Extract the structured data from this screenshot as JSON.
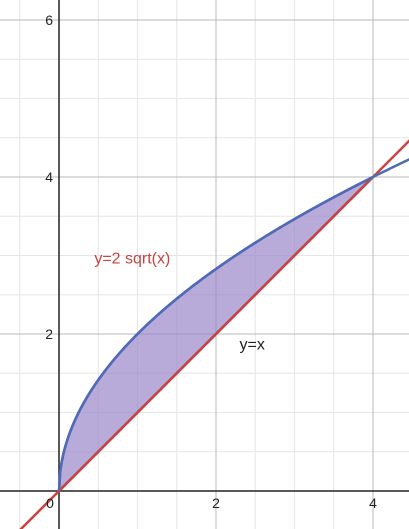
{
  "chart_data": {
    "type": "line",
    "title": "",
    "xlabel": "",
    "ylabel": "",
    "xlim": [
      -0.75,
      4.5
    ],
    "ylim": [
      -0.5,
      6.2
    ],
    "grid": true,
    "minor_grid_step": 0.5,
    "major_grid_step": 2,
    "x_ticks": [
      {
        "value": 0,
        "label": "0"
      },
      {
        "value": 2,
        "label": "2"
      },
      {
        "value": 4,
        "label": "4"
      }
    ],
    "y_ticks": [
      {
        "value": 2,
        "label": "2"
      },
      {
        "value": 4,
        "label": "4"
      },
      {
        "value": 6,
        "label": "6"
      }
    ],
    "series": [
      {
        "name": "y=2 sqrt(x)",
        "expression": "2*sqrt(x)",
        "color": "#4f6bb7",
        "x_domain": [
          0,
          4.5
        ],
        "x": [
          0,
          0.5,
          1,
          1.5,
          2,
          2.5,
          3,
          3.5,
          4,
          4.5
        ],
        "values": [
          0,
          1.41,
          2,
          2.45,
          2.83,
          3.16,
          3.46,
          3.74,
          4,
          4.24
        ]
      },
      {
        "name": "y=x",
        "expression": "x",
        "color": "#c74440",
        "x_domain": [
          -0.75,
          4.5
        ],
        "x": [
          -0.75,
          0,
          1,
          2,
          3,
          4,
          4.5
        ],
        "values": [
          -0.75,
          0,
          1,
          2,
          3,
          4,
          4.5
        ]
      }
    ],
    "shaded_region": {
      "between": [
        "y=2 sqrt(x)",
        "y=x"
      ],
      "x_range": [
        0,
        4
      ],
      "fill": "#9b87c9",
      "edge": "#4a3fa6"
    },
    "annotations": [
      {
        "text": "y=2 sqrt(x)",
        "x": 0.45,
        "y": 2.9,
        "color": "#c74440"
      },
      {
        "text": "y=x",
        "x": 2.3,
        "y": 1.8,
        "color": "#222222"
      }
    ]
  }
}
